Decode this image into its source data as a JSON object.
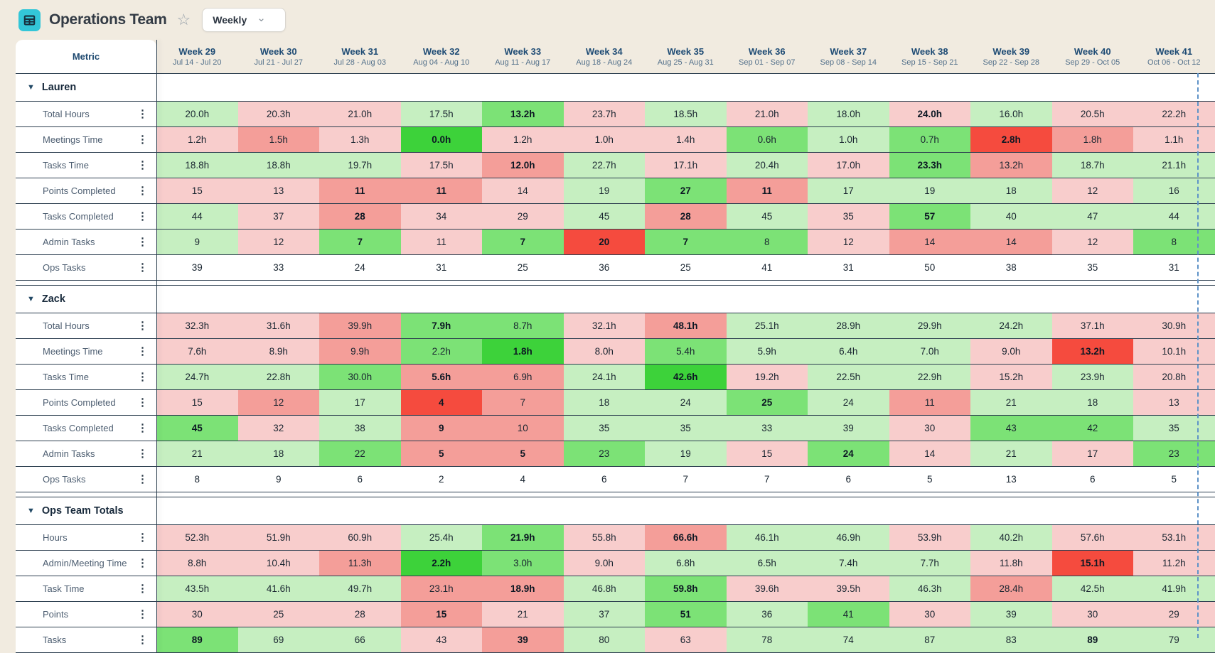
{
  "header": {
    "title": "Operations Team",
    "view_selector": {
      "value": "Weekly"
    }
  },
  "icons": {
    "star": "☆",
    "chevron_down": "⌄",
    "collapse": "▼",
    "kebab": "⋮"
  },
  "colors": {
    "green_light": "#c6efc1",
    "green_medium": "#7ce276",
    "green_bright": "#3dd23a",
    "red_light": "#f8cdcc",
    "red_medium": "#f49e99",
    "red_bright": "#f54b3e",
    "accent_teal": "#33c6d8",
    "page_bg": "#f1ebe0",
    "grid_line": "#273a4b"
  },
  "table": {
    "metric_header": "Metric",
    "weeks": [
      {
        "label": "Week 29",
        "range": "Jul 14 - Jul 20"
      },
      {
        "label": "Week 30",
        "range": "Jul 21 - Jul 27"
      },
      {
        "label": "Week 31",
        "range": "Jul 28 - Aug 03"
      },
      {
        "label": "Week 32",
        "range": "Aug 04 - Aug 10"
      },
      {
        "label": "Week 33",
        "range": "Aug 11 - Aug 17"
      },
      {
        "label": "Week 34",
        "range": "Aug 18 - Aug 24"
      },
      {
        "label": "Week 35",
        "range": "Aug 25 - Aug 31"
      },
      {
        "label": "Week 36",
        "range": "Sep 01 - Sep 07"
      },
      {
        "label": "Week 37",
        "range": "Sep 08 - Sep 14"
      },
      {
        "label": "Week 38",
        "range": "Sep 15 - Sep 21"
      },
      {
        "label": "Week 39",
        "range": "Sep 22 - Sep 28"
      },
      {
        "label": "Week 40",
        "range": "Sep 29 - Oct 05"
      },
      {
        "label": "Week 41",
        "range": "Oct 06 - Oct 12"
      }
    ],
    "sections": [
      {
        "name": "Lauren",
        "rows": [
          {
            "label": "Total Hours",
            "values": [
              "20.0h",
              "20.3h",
              "21.0h",
              "17.5h",
              "13.2h",
              "23.7h",
              "18.5h",
              "21.0h",
              "18.0h",
              "24.0h",
              "16.0h",
              "20.5h",
              "22.2h"
            ],
            "colors": [
              "g1",
              "r1",
              "r1",
              "g1",
              "g2",
              "r1",
              "g1",
              "r1",
              "g1",
              "r1",
              "g1",
              "r1",
              "r1"
            ],
            "bold": [
              4,
              9
            ]
          },
          {
            "label": "Meetings Time",
            "values": [
              "1.2h",
              "1.5h",
              "1.3h",
              "0.0h",
              "1.2h",
              "1.0h",
              "1.4h",
              "0.6h",
              "1.0h",
              "0.7h",
              "2.8h",
              "1.8h",
              "1.1h"
            ],
            "colors": [
              "r1",
              "r2",
              "r1",
              "g3",
              "r1",
              "r1",
              "r1",
              "g2",
              "g1",
              "g2",
              "r3",
              "r2",
              "r1"
            ],
            "bold": [
              3,
              10
            ]
          },
          {
            "label": "Tasks Time",
            "values": [
              "18.8h",
              "18.8h",
              "19.7h",
              "17.5h",
              "12.0h",
              "22.7h",
              "17.1h",
              "20.4h",
              "17.0h",
              "23.3h",
              "13.2h",
              "18.7h",
              "21.1h"
            ],
            "colors": [
              "g1",
              "g1",
              "g1",
              "r1",
              "r2",
              "g1",
              "r1",
              "g1",
              "r1",
              "g2",
              "r2",
              "g1",
              "g1"
            ],
            "bold": [
              4,
              9
            ]
          },
          {
            "label": "Points Completed",
            "values": [
              "15",
              "13",
              "11",
              "11",
              "14",
              "19",
              "27",
              "11",
              "17",
              "19",
              "18",
              "12",
              "16"
            ],
            "colors": [
              "r1",
              "r1",
              "r2",
              "r2",
              "r1",
              "g1",
              "g2",
              "r2",
              "g1",
              "g1",
              "g1",
              "r1",
              "g1"
            ],
            "bold": [
              2,
              3,
              6,
              7
            ]
          },
          {
            "label": "Tasks Completed",
            "values": [
              "44",
              "37",
              "28",
              "34",
              "29",
              "45",
              "28",
              "45",
              "35",
              "57",
              "40",
              "47",
              "44"
            ],
            "colors": [
              "g1",
              "r1",
              "r2",
              "r1",
              "r1",
              "g1",
              "r2",
              "g1",
              "r1",
              "g2",
              "g1",
              "g1",
              "g1"
            ],
            "bold": [
              2,
              6,
              9
            ]
          },
          {
            "label": "Admin Tasks",
            "values": [
              "9",
              "12",
              "7",
              "11",
              "7",
              "20",
              "7",
              "8",
              "12",
              "14",
              "14",
              "12",
              "8"
            ],
            "colors": [
              "g1",
              "r1",
              "g2",
              "r1",
              "g2",
              "r3",
              "g2",
              "g2",
              "r1",
              "r2",
              "r2",
              "r1",
              "g2"
            ],
            "bold": [
              2,
              4,
              5,
              6
            ]
          },
          {
            "label": "Ops Tasks",
            "values": [
              "39",
              "33",
              "24",
              "31",
              "25",
              "36",
              "25",
              "41",
              "31",
              "50",
              "38",
              "35",
              "31"
            ],
            "colors": [
              "w",
              "w",
              "w",
              "w",
              "w",
              "w",
              "w",
              "w",
              "w",
              "w",
              "w",
              "w",
              "w"
            ],
            "bold": []
          }
        ]
      },
      {
        "name": "Zack",
        "rows": [
          {
            "label": "Total Hours",
            "values": [
              "32.3h",
              "31.6h",
              "39.9h",
              "7.9h",
              "8.7h",
              "32.1h",
              "48.1h",
              "25.1h",
              "28.9h",
              "29.9h",
              "24.2h",
              "37.1h",
              "30.9h"
            ],
            "colors": [
              "r1",
              "r1",
              "r2",
              "g2",
              "g2",
              "r1",
              "r2",
              "g1",
              "g1",
              "g1",
              "g1",
              "r1",
              "r1"
            ],
            "bold": [
              3,
              6
            ]
          },
          {
            "label": "Meetings Time",
            "values": [
              "7.6h",
              "8.9h",
              "9.9h",
              "2.2h",
              "1.8h",
              "8.0h",
              "5.4h",
              "5.9h",
              "6.4h",
              "7.0h",
              "9.0h",
              "13.2h",
              "10.1h"
            ],
            "colors": [
              "r1",
              "r1",
              "r2",
              "g2",
              "g3",
              "r1",
              "g2",
              "g1",
              "g1",
              "g1",
              "r1",
              "r3",
              "r1"
            ],
            "bold": [
              4,
              11
            ]
          },
          {
            "label": "Tasks Time",
            "values": [
              "24.7h",
              "22.8h",
              "30.0h",
              "5.6h",
              "6.9h",
              "24.1h",
              "42.6h",
              "19.2h",
              "22.5h",
              "22.9h",
              "15.2h",
              "23.9h",
              "20.8h"
            ],
            "colors": [
              "g1",
              "g1",
              "g2",
              "r2",
              "r2",
              "g1",
              "g3",
              "r1",
              "g1",
              "g1",
              "r1",
              "g1",
              "r1"
            ],
            "bold": [
              3,
              6
            ]
          },
          {
            "label": "Points Completed",
            "values": [
              "15",
              "12",
              "17",
              "4",
              "7",
              "18",
              "24",
              "25",
              "24",
              "11",
              "21",
              "18",
              "13"
            ],
            "colors": [
              "r1",
              "r2",
              "g1",
              "r3",
              "r2",
              "g1",
              "g1",
              "g2",
              "g1",
              "r2",
              "g1",
              "g1",
              "r1"
            ],
            "bold": [
              3,
              7
            ]
          },
          {
            "label": "Tasks Completed",
            "values": [
              "45",
              "32",
              "38",
              "9",
              "10",
              "35",
              "35",
              "33",
              "39",
              "30",
              "43",
              "42",
              "35"
            ],
            "colors": [
              "g2",
              "r1",
              "g1",
              "r2",
              "r2",
              "g1",
              "g1",
              "g1",
              "g1",
              "r1",
              "g2",
              "g2",
              "g1"
            ],
            "bold": [
              0,
              3
            ]
          },
          {
            "label": "Admin Tasks",
            "values": [
              "21",
              "18",
              "22",
              "5",
              "5",
              "23",
              "19",
              "15",
              "24",
              "14",
              "21",
              "17",
              "23"
            ],
            "colors": [
              "g1",
              "g1",
              "g2",
              "r2",
              "r2",
              "g2",
              "g1",
              "r1",
              "g2",
              "r1",
              "g1",
              "r1",
              "g2"
            ],
            "bold": [
              3,
              4,
              8
            ]
          },
          {
            "label": "Ops Tasks",
            "values": [
              "8",
              "9",
              "6",
              "2",
              "4",
              "6",
              "7",
              "7",
              "6",
              "5",
              "13",
              "6",
              "5"
            ],
            "colors": [
              "w",
              "w",
              "w",
              "w",
              "w",
              "w",
              "w",
              "w",
              "w",
              "w",
              "w",
              "w",
              "w"
            ],
            "bold": []
          }
        ]
      },
      {
        "name": "Ops Team Totals",
        "rows": [
          {
            "label": "Hours",
            "values": [
              "52.3h",
              "51.9h",
              "60.9h",
              "25.4h",
              "21.9h",
              "55.8h",
              "66.6h",
              "46.1h",
              "46.9h",
              "53.9h",
              "40.2h",
              "57.6h",
              "53.1h"
            ],
            "colors": [
              "r1",
              "r1",
              "r1",
              "g1",
              "g2",
              "r1",
              "r2",
              "g1",
              "g1",
              "r1",
              "g1",
              "r1",
              "r1"
            ],
            "bold": [
              4,
              6
            ]
          },
          {
            "label": "Admin/Meeting Time",
            "values": [
              "8.8h",
              "10.4h",
              "11.3h",
              "2.2h",
              "3.0h",
              "9.0h",
              "6.8h",
              "6.5h",
              "7.4h",
              "7.7h",
              "11.8h",
              "15.1h",
              "11.2h"
            ],
            "colors": [
              "r1",
              "r1",
              "r2",
              "g3",
              "g2",
              "r1",
              "g1",
              "g1",
              "g1",
              "g1",
              "r1",
              "r3",
              "r1"
            ],
            "bold": [
              3,
              11
            ]
          },
          {
            "label": "Task Time",
            "values": [
              "43.5h",
              "41.6h",
              "49.7h",
              "23.1h",
              "18.9h",
              "46.8h",
              "59.8h",
              "39.6h",
              "39.5h",
              "46.3h",
              "28.4h",
              "42.5h",
              "41.9h"
            ],
            "colors": [
              "g1",
              "g1",
              "g1",
              "r2",
              "r2",
              "g1",
              "g2",
              "r1",
              "r1",
              "g1",
              "r2",
              "g1",
              "g1"
            ],
            "bold": [
              4,
              6
            ]
          },
          {
            "label": "Points",
            "values": [
              "30",
              "25",
              "28",
              "15",
              "21",
              "37",
              "51",
              "36",
              "41",
              "30",
              "39",
              "30",
              "29"
            ],
            "colors": [
              "r1",
              "r1",
              "r1",
              "r2",
              "r1",
              "g1",
              "g2",
              "g1",
              "g2",
              "r1",
              "g1",
              "r1",
              "r1"
            ],
            "bold": [
              3,
              6
            ]
          },
          {
            "label": "Tasks",
            "values": [
              "89",
              "69",
              "66",
              "43",
              "39",
              "80",
              "63",
              "78",
              "74",
              "87",
              "83",
              "89",
              "79"
            ],
            "colors": [
              "g2",
              "g1",
              "g1",
              "r1",
              "r2",
              "g1",
              "r1",
              "g1",
              "g1",
              "g1",
              "g1",
              "g1",
              "g1"
            ],
            "bold": [
              0,
              4,
              11
            ]
          }
        ]
      }
    ]
  }
}
